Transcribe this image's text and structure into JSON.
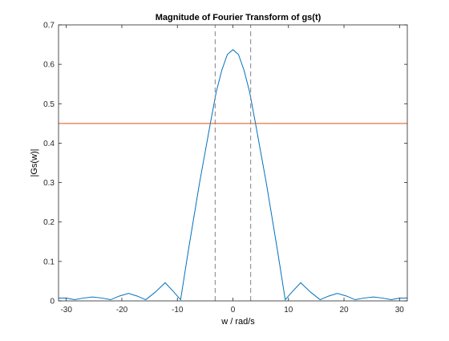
{
  "chart_data": {
    "type": "line",
    "title": "Magnitude of Fourier Transform of gs(t)",
    "xlabel": "w / rad/s",
    "ylabel": "|Gs(w)|",
    "xlim": [
      -31.4,
      31.4
    ],
    "ylim": [
      0,
      0.7
    ],
    "xticks": [
      -30,
      -20,
      -10,
      0,
      10,
      20,
      30
    ],
    "xtick_labels": [
      "-30",
      "-20",
      "-10",
      "0",
      "10",
      "20",
      "30"
    ],
    "yticks": [
      0,
      0.1,
      0.2,
      0.3,
      0.4,
      0.5,
      0.6,
      0.7
    ],
    "ytick_labels": [
      "0",
      "0.1",
      "0.2",
      "0.3",
      "0.4",
      "0.5",
      "0.6",
      "0.7"
    ],
    "grid": false,
    "series": [
      {
        "color": "#0072BD",
        "style": "solid",
        "x": [
          -31.4,
          -30,
          -28.5,
          -27,
          -25.3,
          -23.5,
          -22,
          -20.5,
          -18.8,
          -17.2,
          -15.7,
          -14,
          -12.2,
          -10.8,
          -9.42,
          -8,
          -6,
          -4,
          -3,
          -2,
          -1,
          0,
          1,
          2,
          3,
          4,
          6,
          8,
          9.42,
          10.8,
          12.2,
          14,
          15.7,
          17.2,
          18.8,
          20.5,
          22,
          23.5,
          25.3,
          27,
          28.5,
          30,
          31.4
        ],
        "y": [
          0.007,
          0.007,
          0.003,
          0.007,
          0.01,
          0.007,
          0.003,
          0.012,
          0.019,
          0.012,
          0.003,
          0.022,
          0.046,
          0.025,
          0.003,
          0.13,
          0.3,
          0.455,
          0.53,
          0.585,
          0.625,
          0.637,
          0.625,
          0.585,
          0.53,
          0.455,
          0.3,
          0.13,
          0.003,
          0.025,
          0.046,
          0.022,
          0.003,
          0.012,
          0.019,
          0.012,
          0.003,
          0.007,
          0.01,
          0.007,
          0.003,
          0.007,
          0.007
        ]
      },
      {
        "color": "#D95319",
        "style": "solid",
        "x": [
          -31.4,
          31.4
        ],
        "y": [
          0.45,
          0.45
        ]
      },
      {
        "color": "#808080",
        "style": "dashed",
        "x": [
          -3.2,
          -3.2
        ],
        "y": [
          0,
          0.7
        ]
      },
      {
        "color": "#808080",
        "style": "dashed",
        "x": [
          3.2,
          3.2
        ],
        "y": [
          0,
          0.7
        ]
      }
    ]
  }
}
